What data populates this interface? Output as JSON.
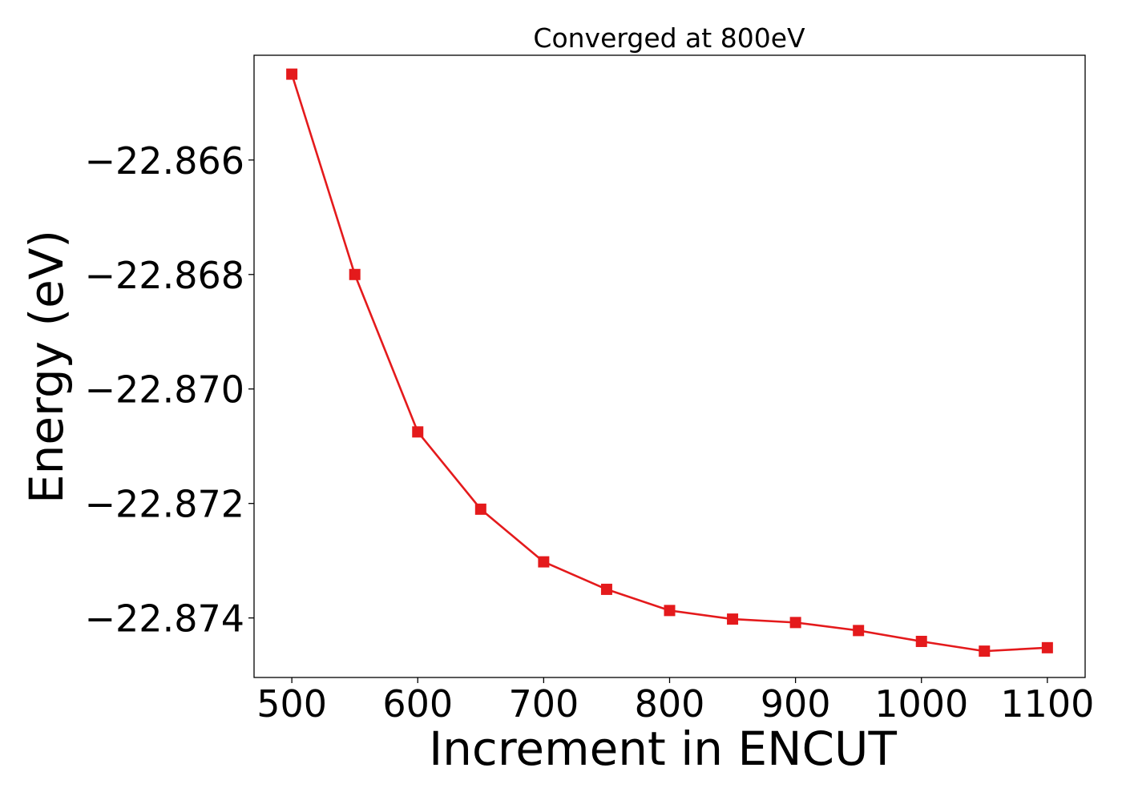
{
  "chart_data": {
    "type": "line",
    "title": "Converged at 800eV",
    "xlabel": "Increment in ENCUT",
    "ylabel": "Energy (eV)",
    "x": [
      500,
      550,
      600,
      650,
      700,
      750,
      800,
      850,
      900,
      950,
      1000,
      1050,
      1100
    ],
    "series": [
      {
        "values": [
          -22.8645,
          -22.868,
          -22.87075,
          -22.8721,
          -22.87302,
          -22.8735,
          -22.87387,
          -22.87402,
          -22.87408,
          -22.87422,
          -22.87441,
          -22.87458,
          -22.87452
        ],
        "color": "#e41a1c",
        "marker": "square"
      }
    ],
    "xlim": [
      470,
      1130
    ],
    "ylim": [
      -22.87504,
      -22.86417
    ],
    "xticks": [
      500,
      600,
      700,
      800,
      900,
      1000,
      1100
    ],
    "xtick_labels": [
      "500",
      "600",
      "700",
      "800",
      "900",
      "1000",
      "1100"
    ],
    "yticks": [
      -22.866,
      -22.868,
      -22.87,
      -22.872,
      -22.874
    ],
    "ytick_labels": [
      "−22.866",
      "−22.868",
      "−22.870",
      "−22.872",
      "−22.874"
    ],
    "grid": false,
    "legend": "none"
  }
}
